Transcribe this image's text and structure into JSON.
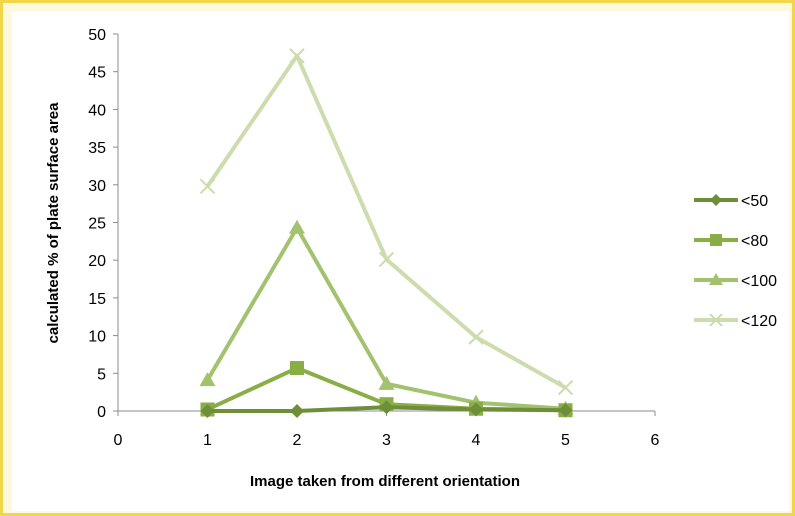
{
  "chart_data": {
    "type": "line",
    "title": "",
    "xlabel": "Image taken from different orientation",
    "ylabel": "calculated %  of plate surface area",
    "xlim": [
      0,
      6
    ],
    "ylim": [
      0,
      50
    ],
    "x_ticks": [
      "0",
      "1",
      "2",
      "3",
      "4",
      "5",
      "6"
    ],
    "y_ticks": [
      "0",
      "5",
      "10",
      "15",
      "20",
      "25",
      "30",
      "35",
      "40",
      "45",
      "50"
    ],
    "x": [
      1,
      2,
      3,
      4,
      5
    ],
    "grid": false,
    "legend_position": "right",
    "series": [
      {
        "name": "<50",
        "values": [
          0,
          0,
          0.5,
          0.2,
          0.1
        ],
        "color": "#6e8e3a",
        "marker": "diamond"
      },
      {
        "name": "<80",
        "values": [
          0.2,
          5.7,
          0.9,
          0.3,
          0.1
        ],
        "color": "#8aae46",
        "marker": "square"
      },
      {
        "name": "<100",
        "values": [
          4.1,
          24.3,
          3.6,
          1.1,
          0.3
        ],
        "color": "#a2c26e",
        "marker": "triangle"
      },
      {
        "name": "<120",
        "values": [
          29.8,
          47.1,
          20.1,
          9.8,
          3.1
        ],
        "color": "#cddcae",
        "marker": "x"
      }
    ]
  }
}
